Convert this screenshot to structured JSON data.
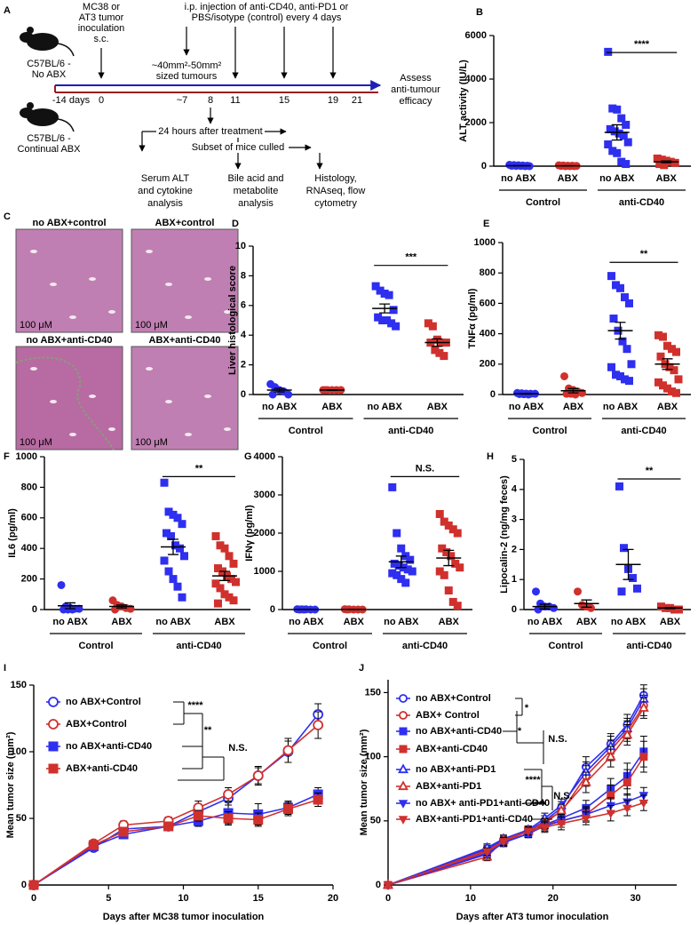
{
  "diagram": {
    "panel": "A",
    "mouse_no_abx": [
      "C57BL/6 -",
      "No ABX"
    ],
    "mouse_abx": [
      "C57BL/6 -",
      "Continual ABX"
    ],
    "inoculation": [
      "MC38 or",
      "AT3 tumor",
      "inoculation",
      "s.c."
    ],
    "injection": [
      "i.p. injection of anti-CD40, anti-PD1 or",
      "PBS/isotype (control) every 4 days"
    ],
    "tumour_size": [
      "~40mm²-50mm²",
      "sized tumours"
    ],
    "assess": [
      "Assess",
      "anti-tumour",
      "efficacy"
    ],
    "timeline": [
      "-14 days",
      "0",
      "~7",
      "8",
      "11",
      "15",
      "19",
      "21"
    ],
    "after_treatment": "24 hours after treatment",
    "culled": "Subset of mice culled",
    "outcomes": [
      [
        "Serum ALT",
        "and cytokine",
        "analysis"
      ],
      [
        "Bile acid and",
        "metabolite",
        "analysis"
      ],
      [
        "Histology,",
        "RNAseq, flow",
        "cytometry"
      ]
    ]
  },
  "histology": {
    "panel": "C",
    "images": [
      {
        "label": "no ABX+control",
        "scale": "100 μM"
      },
      {
        "label": "ABX+control",
        "scale": "100 μM"
      },
      {
        "label": "no ABX+anti-CD40",
        "scale": "100 μM"
      },
      {
        "label": "ABX+anti-CD40",
        "scale": "100 μM"
      }
    ]
  },
  "chart_data": [
    {
      "type": "dot",
      "panel": "B",
      "ylabel": "ALT activity (IU/L)",
      "ylim": [
        0,
        6000
      ],
      "yticks": [
        0,
        2000,
        4000,
        6000
      ],
      "categories": [
        "no ABX",
        "ABX",
        "no ABX",
        "ABX"
      ],
      "groups": [
        "Control",
        "anti-CD40"
      ],
      "colors": [
        "#2f2ff0",
        "#d0312d",
        "#2f2ff0",
        "#d0312d"
      ],
      "markers": [
        "circle",
        "circle",
        "square",
        "square"
      ],
      "points": [
        [
          60,
          50,
          40,
          30,
          20,
          20,
          10,
          10,
          0,
          0
        ],
        [
          40,
          30,
          20,
          20,
          10,
          10,
          0,
          0,
          0
        ],
        [
          5250,
          2650,
          2600,
          2200,
          1900,
          1700,
          1600,
          1500,
          1400,
          1100,
          1000,
          700,
          600,
          200,
          100
        ],
        [
          350,
          300,
          250,
          200,
          150,
          100,
          50
        ]
      ],
      "mean": [
        20,
        15,
        1550,
        200
      ],
      "sem": [
        6,
        5,
        350,
        40
      ],
      "significance": "****"
    },
    {
      "type": "dot",
      "panel": "D",
      "ylabel": "Liver histological score",
      "ylim": [
        0,
        10
      ],
      "yticks": [
        0,
        2,
        4,
        6,
        8,
        10
      ],
      "categories": [
        "no ABX",
        "ABX",
        "no ABX",
        "ABX"
      ],
      "groups": [
        "Control",
        "anti-CD40"
      ],
      "colors": [
        "#2f2ff0",
        "#d0312d",
        "#2f2ff0",
        "#d0312d"
      ],
      "markers": [
        "circle",
        "circle",
        "square",
        "square"
      ],
      "points": [
        [
          0.7,
          0.5,
          0.3,
          0.2,
          0,
          0
        ],
        [
          0.3,
          0.3,
          0.3,
          0.3,
          0.3,
          0.3
        ],
        [
          7.3,
          7,
          6.8,
          6.7,
          5.7,
          5.2,
          5,
          5,
          4.8,
          4.6
        ],
        [
          4.8,
          4.6,
          3.7,
          3.5,
          3.5,
          3.5,
          3,
          2.8,
          2.6
        ]
      ],
      "mean": [
        0.3,
        0.3,
        5.8,
        3.5
      ],
      "sem": [
        0.12,
        0.02,
        0.3,
        0.25
      ],
      "significance": "***"
    },
    {
      "type": "dot",
      "panel": "E",
      "ylabel": "TNFα (pg/ml)",
      "ylim": [
        0,
        1000
      ],
      "yticks": [
        0,
        200,
        400,
        600,
        800,
        1000
      ],
      "categories": [
        "no ABX",
        "ABX",
        "no ABX",
        "ABX"
      ],
      "groups": [
        "Control",
        "anti-CD40"
      ],
      "colors": [
        "#2f2ff0",
        "#d0312d",
        "#2f2ff0",
        "#d0312d"
      ],
      "markers": [
        "circle",
        "circle",
        "square",
        "square"
      ],
      "points": [
        [
          10,
          8,
          6,
          5,
          5,
          3,
          2,
          0
        ],
        [
          120,
          40,
          30,
          20,
          10,
          5,
          5,
          0
        ],
        [
          780,
          720,
          700,
          640,
          600,
          500,
          420,
          350,
          300,
          200,
          180,
          130,
          120,
          100,
          90
        ],
        [
          390,
          380,
          320,
          300,
          280,
          250,
          200,
          180,
          160,
          100,
          80,
          60,
          40,
          20,
          10
        ]
      ],
      "mean": [
        5,
        25,
        420,
        200
      ],
      "sem": [
        2,
        14,
        55,
        35
      ],
      "significance": "**"
    },
    {
      "type": "dot",
      "panel": "F",
      "ylabel": "IL6 (pg/ml)",
      "ylim": [
        0,
        1000
      ],
      "yticks": [
        0,
        200,
        400,
        600,
        800,
        1000
      ],
      "categories": [
        "no ABX",
        "ABX",
        "no ABX",
        "ABX"
      ],
      "groups": [
        "Control",
        "anti-CD40"
      ],
      "colors": [
        "#2f2ff0",
        "#d0312d",
        "#2f2ff0",
        "#d0312d"
      ],
      "markers": [
        "circle",
        "circle",
        "square",
        "square"
      ],
      "points": [
        [
          160,
          20,
          10,
          5,
          5,
          0,
          0,
          0
        ],
        [
          60,
          30,
          20,
          10,
          5,
          0
        ],
        [
          830,
          640,
          620,
          600,
          560,
          500,
          480,
          420,
          400,
          350,
          320,
          250,
          200,
          150,
          80
        ],
        [
          480,
          420,
          400,
          350,
          300,
          270,
          250,
          220,
          200,
          180,
          170,
          140,
          100,
          80,
          60,
          40
        ]
      ],
      "mean": [
        25,
        20,
        410,
        220
      ],
      "sem": [
        19,
        10,
        50,
        30
      ],
      "significance": "**"
    },
    {
      "type": "dot",
      "panel": "G",
      "ylabel": "IFNγ (pg/ml)",
      "ylim": [
        0,
        4000
      ],
      "yticks": [
        0,
        1000,
        2000,
        3000,
        4000
      ],
      "categories": [
        "no ABX",
        "ABX",
        "no ABX",
        "ABX"
      ],
      "groups": [
        "Control",
        "anti-CD40"
      ],
      "colors": [
        "#2f2ff0",
        "#d0312d",
        "#2f2ff0",
        "#d0312d"
      ],
      "markers": [
        "circle",
        "circle",
        "square",
        "square"
      ],
      "points": [
        [
          10,
          5,
          5,
          0,
          0,
          0,
          0
        ],
        [
          10,
          5,
          0,
          0,
          0,
          0
        ],
        [
          3200,
          2000,
          1600,
          1400,
          1300,
          1200,
          1150,
          1100,
          1050,
          1000,
          950,
          900,
          800,
          700
        ],
        [
          2500,
          2300,
          2200,
          2100,
          2000,
          1600,
          1500,
          1400,
          1200,
          1100,
          1000,
          900,
          500,
          200,
          100
        ]
      ],
      "mean": [
        3,
        2,
        1250,
        1350
      ],
      "sem": [
        2,
        2,
        150,
        200
      ],
      "significance": "N.S."
    },
    {
      "type": "dot",
      "panel": "H",
      "ylabel": "Lipocalin-2 (ng/mg feces)",
      "ylim": [
        0,
        5
      ],
      "yticks": [
        0,
        1,
        2,
        3,
        4,
        5
      ],
      "categories": [
        "no ABX",
        "ABX",
        "no ABX",
        "ABX"
      ],
      "groups": [
        "Control",
        "anti-CD40"
      ],
      "colors": [
        "#2f2ff0",
        "#d0312d",
        "#2f2ff0",
        "#d0312d"
      ],
      "markers": [
        "circle",
        "circle",
        "square",
        "square"
      ],
      "points": [
        [
          0.6,
          0.2,
          0.1,
          0.1,
          0.05,
          0
        ],
        [
          0.6,
          0.15,
          0.1,
          0.05
        ],
        [
          4.1,
          2.05,
          1.35,
          1.05,
          0.7,
          0.6
        ],
        [
          0.1,
          0.05,
          0.05,
          0,
          0
        ]
      ],
      "mean": [
        0.1,
        0.2,
        1.5,
        0.05
      ],
      "sem": [
        0.08,
        0.12,
        0.5,
        0.02
      ],
      "significance": "**"
    },
    {
      "type": "line",
      "panel": "I",
      "xlabel": "Days after MC38 tumor inoculation",
      "ylabel": "Mean tumor size (mm²)",
      "x": [
        0,
        4,
        6,
        9,
        11,
        13,
        15,
        17,
        19
      ],
      "xlim": [
        0,
        20
      ],
      "xticks": [
        0,
        5,
        10,
        15,
        20
      ],
      "ylim": [
        0,
        150
      ],
      "yticks": [
        0,
        50,
        100,
        150
      ],
      "series": [
        {
          "name": "no ABX+Control",
          "color": "#2f2ff0",
          "marker": "circle-open",
          "values": [
            0,
            28,
            42,
            44,
            55,
            65,
            82,
            100,
            128
          ],
          "err": [
            0,
            2,
            3,
            2,
            4,
            5,
            6,
            8,
            8
          ]
        },
        {
          "name": "ABX+Control",
          "color": "#d0312d",
          "marker": "circle-open",
          "values": [
            0,
            31,
            45,
            48,
            58,
            68,
            82,
            101,
            120
          ],
          "err": [
            0,
            2,
            3,
            3,
            5,
            5,
            7,
            9,
            10
          ]
        },
        {
          "name": "no ABX+anti-CD40",
          "color": "#2f2ff0",
          "marker": "square",
          "values": [
            0,
            29,
            38,
            44,
            48,
            54,
            53,
            58,
            68
          ],
          "err": [
            0,
            2,
            3,
            3,
            4,
            8,
            8,
            5,
            5
          ]
        },
        {
          "name": "ABX+anti-CD40",
          "color": "#d0312d",
          "marker": "square",
          "values": [
            0,
            30,
            40,
            44,
            52,
            50,
            49,
            57,
            64
          ],
          "err": [
            0,
            2,
            3,
            3,
            4,
            5,
            5,
            5,
            5
          ]
        }
      ],
      "annotations": [
        "****",
        "**",
        "N.S."
      ]
    },
    {
      "type": "line",
      "panel": "J",
      "xlabel": "Days after AT3 tumor inoculation",
      "ylabel": "Mean tumor size (mm²)",
      "x": [
        0,
        12,
        14,
        17,
        19,
        21,
        24,
        27,
        29,
        31
      ],
      "xlim": [
        0,
        35
      ],
      "xticks": [
        0,
        10,
        20,
        30
      ],
      "ylim": [
        0,
        160
      ],
      "yticks": [
        0,
        50,
        100,
        150
      ],
      "series": [
        {
          "name": "no ABX+Control",
          "color": "#2f2ff0",
          "marker": "circle-open",
          "values": [
            0,
            28,
            35,
            42,
            50,
            60,
            92,
            110,
            125,
            148
          ],
          "err": [
            0,
            3,
            3,
            3,
            4,
            5,
            8,
            8,
            8,
            8
          ]
        },
        {
          "name": "ABX+ Control",
          "color": "#d0312d",
          "marker": "circle-open",
          "values": [
            0,
            27,
            34,
            40,
            50,
            57,
            85,
            105,
            120,
            140
          ],
          "err": [
            0,
            3,
            3,
            3,
            4,
            5,
            8,
            8,
            8,
            8
          ]
        },
        {
          "name": "no ABX+anti-CD40",
          "color": "#2f2ff0",
          "marker": "square",
          "values": [
            0,
            25,
            33,
            40,
            47,
            52,
            60,
            75,
            85,
            104
          ],
          "err": [
            0,
            3,
            3,
            3,
            4,
            5,
            6,
            8,
            10,
            12
          ]
        },
        {
          "name": "ABX+anti-CD40",
          "color": "#d0312d",
          "marker": "square",
          "values": [
            0,
            26,
            34,
            43,
            47,
            50,
            55,
            70,
            80,
            100
          ],
          "err": [
            0,
            3,
            3,
            3,
            4,
            5,
            6,
            8,
            10,
            12
          ]
        },
        {
          "name": "no ABX+anti-PD1",
          "color": "#2f2ff0",
          "marker": "triangle-open",
          "values": [
            0,
            29,
            36,
            43,
            52,
            62,
            88,
            108,
            122,
            145
          ],
          "err": [
            0,
            3,
            3,
            3,
            4,
            5,
            8,
            8,
            8,
            8
          ]
        },
        {
          "name": "ABX+anti-PD1",
          "color": "#d0312d",
          "marker": "triangle-open",
          "values": [
            0,
            22,
            35,
            42,
            48,
            58,
            80,
            100,
            117,
            138
          ],
          "err": [
            0,
            3,
            3,
            3,
            4,
            5,
            8,
            8,
            8,
            8
          ]
        },
        {
          "name": "no ABX+ anti-PD1+anti-CD40",
          "color": "#2f2ff0",
          "marker": "triangle-down",
          "values": [
            0,
            24,
            33,
            40,
            46,
            50,
            55,
            62,
            65,
            70
          ],
          "err": [
            0,
            3,
            3,
            3,
            4,
            5,
            5,
            6,
            6,
            6
          ]
        },
        {
          "name": "ABX+anti-PD1+anti-CD40",
          "color": "#d0312d",
          "marker": "triangle-down",
          "values": [
            0,
            26,
            34,
            42,
            45,
            48,
            52,
            56,
            60,
            64
          ],
          "err": [
            0,
            3,
            3,
            3,
            4,
            5,
            5,
            6,
            6,
            6
          ]
        }
      ],
      "annotations": [
        "*",
        "*",
        "N.S.",
        "****",
        "****",
        "N.S."
      ]
    }
  ]
}
